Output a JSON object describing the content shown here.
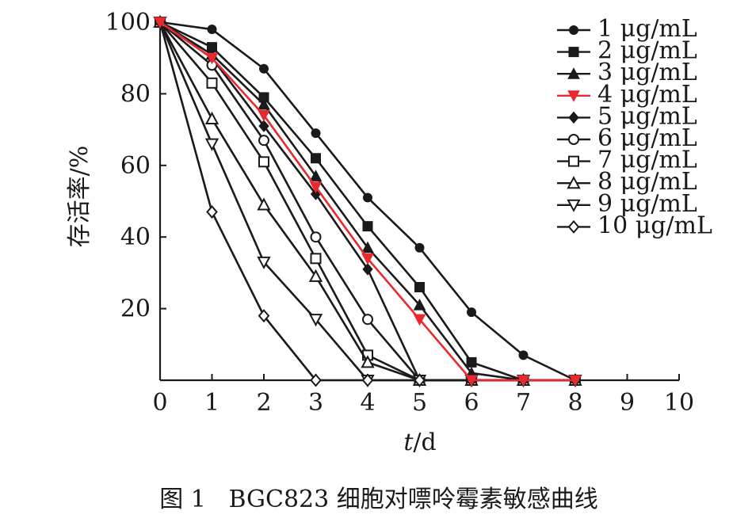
{
  "chart_data": {
    "type": "line",
    "title": "",
    "caption": "图 1   BGC823 细胞对嘌呤霉素敏感曲线",
    "xlabel_var": "t",
    "xlabel_unit": "/d",
    "ylabel": "存活率/%",
    "xlim": [
      0,
      10
    ],
    "ylim": [
      0,
      100
    ],
    "x_ticks": [
      "0",
      "1",
      "2",
      "3",
      "4",
      "5",
      "6",
      "7",
      "8",
      "9",
      "10"
    ],
    "y_ticks": [
      "20",
      "40",
      "60",
      "80",
      "100"
    ],
    "grid": false,
    "legend_position": "top-right",
    "x": [
      0,
      1,
      2,
      3,
      4,
      5,
      6,
      7,
      8
    ],
    "series": [
      {
        "name": "1 μg/mL",
        "marker": "filled-circle",
        "color": "#1a1a1a",
        "values": [
          100,
          98,
          87,
          69,
          51,
          37,
          19,
          7,
          0
        ]
      },
      {
        "name": "2 μg/mL",
        "marker": "filled-square",
        "color": "#1a1a1a",
        "values": [
          100,
          93,
          79,
          62,
          43,
          26,
          5,
          0,
          0
        ]
      },
      {
        "name": "3 μg/mL",
        "marker": "filled-triangle-up",
        "color": "#1a1a1a",
        "values": [
          100,
          91,
          77,
          57,
          37,
          21,
          2,
          0,
          0
        ]
      },
      {
        "name": "4 μg/mL",
        "marker": "filled-triangle-down",
        "color": "#e8292e",
        "values": [
          100,
          90,
          74,
          54,
          34,
          17,
          0,
          0,
          0
        ]
      },
      {
        "name": "5 μg/mL",
        "marker": "filled-diamond",
        "color": "#1a1a1a",
        "values": [
          100,
          90,
          71,
          52,
          31,
          0,
          0,
          0,
          0
        ]
      },
      {
        "name": "6 μg/mL",
        "marker": "open-circle",
        "color": "#1a1a1a",
        "values": [
          100,
          88,
          67,
          40,
          17,
          0,
          0,
          0,
          0
        ]
      },
      {
        "name": "7 μg/mL",
        "marker": "open-square",
        "color": "#1a1a1a",
        "values": [
          100,
          83,
          61,
          34,
          7,
          0,
          0,
          0,
          0
        ]
      },
      {
        "name": "8 μg/mL",
        "marker": "open-triangle-up",
        "color": "#1a1a1a",
        "values": [
          100,
          73,
          49,
          29,
          5,
          0,
          0,
          0,
          0
        ]
      },
      {
        "name": "9 μg/mL",
        "marker": "open-triangle-down",
        "color": "#1a1a1a",
        "values": [
          100,
          66,
          33,
          17,
          0,
          0,
          0,
          0,
          0
        ]
      },
      {
        "name": "10 μg/mL",
        "marker": "open-diamond",
        "color": "#1a1a1a",
        "values": [
          100,
          47,
          18,
          0,
          0,
          0,
          0,
          0,
          0
        ]
      }
    ]
  }
}
